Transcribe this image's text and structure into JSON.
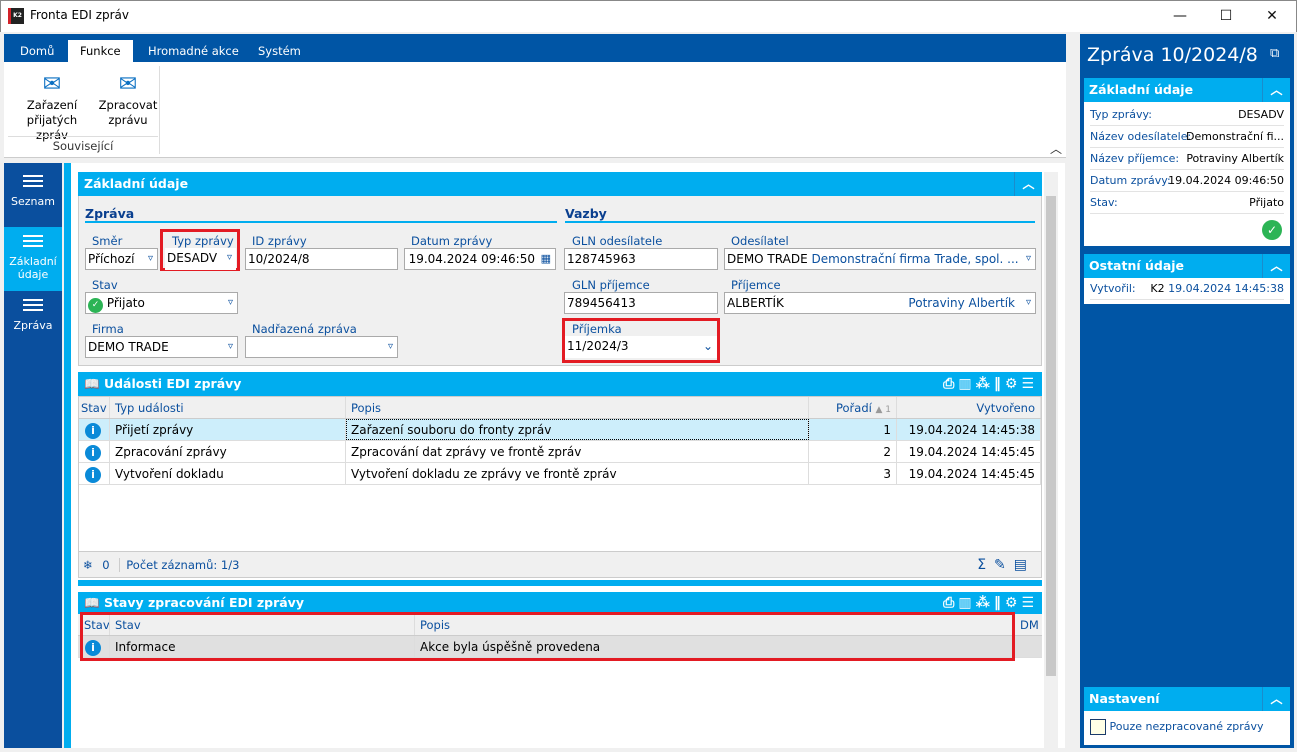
{
  "window": {
    "title": "Fronta EDI zpráv",
    "logo": "K2",
    "minimize": "—",
    "maximize": "☐",
    "close": "✕"
  },
  "ribbon": {
    "tabs": [
      "Domů",
      "Funkce",
      "Hromadné akce",
      "Systém"
    ],
    "active_tab": "Funkce",
    "buttons": [
      {
        "line1": "Zařazení",
        "line2": "přijatých zpráv",
        "icon": "envelopes-icon"
      },
      {
        "line1": "Zpracovat",
        "line2": "zprávu",
        "icon": "envelope-gear-icon"
      }
    ],
    "group": "Související"
  },
  "nav": {
    "items": [
      {
        "label": "Seznam"
      },
      {
        "label1": "Základní",
        "label2": "údaje",
        "active": true
      },
      {
        "label": "Zpráva"
      }
    ]
  },
  "basic": {
    "title": "Základní údaje",
    "zprava": {
      "title": "Zpráva",
      "smer_label": "Směr",
      "smer": "Příchozí",
      "typ_label": "Typ zprávy",
      "typ": "DESADV",
      "id_label": "ID zprávy",
      "id": "10/2024/8",
      "datum_label": "Datum zprávy",
      "datum": "19.04.2024 09:46:50",
      "stav_label": "Stav",
      "stav": "Přijato",
      "firma_label": "Firma",
      "firma": "DEMO TRADE",
      "nadrazena_label": "Nadřazená zpráva",
      "nadrazena": ""
    },
    "vazby": {
      "title": "Vazby",
      "gln_odes_label": "GLN odesílatele",
      "gln_odes": "128745963",
      "odes_label": "Odesílatel",
      "odes_code": "DEMO TRADE",
      "odes_name": "Demonstrační firma Trade, spol. ...",
      "gln_prij_label": "GLN příjemce",
      "gln_prij": "789456413",
      "prij_label": "Příjemce",
      "prij_code": "ALBERTÍK",
      "prij_name": "Potraviny Albertík",
      "prijemka_label": "Příjemka",
      "prijemka": "11/2024/3"
    }
  },
  "events": {
    "title": "Události EDI zprávy",
    "columns": [
      "Stav",
      "Typ události",
      "Popis",
      "Pořadí",
      "Vytvořeno"
    ],
    "sort_marker": "▲ 1",
    "rows": [
      {
        "typ": "Přijetí zprávy",
        "popis": "Zařazení souboru do fronty zpráv",
        "poradi": "1",
        "vytvoreno": "19.04.2024 14:45:38"
      },
      {
        "typ": "Zpracování zprávy",
        "popis": "Zpracování dat zprávy ve frontě zpráv",
        "poradi": "2",
        "vytvoreno": "19.04.2024 14:45:45"
      },
      {
        "typ": "Vytvoření dokladu",
        "popis": "Vytvoření dokladu ze zprávy ve frontě zpráv",
        "poradi": "3",
        "vytvoreno": "19.04.2024 14:45:45"
      }
    ],
    "footer": {
      "filter_count": "0",
      "count": "Počet záznamů: 1/3"
    }
  },
  "states": {
    "title": "Stavy zpracování EDI zprávy",
    "columns": [
      "Stav",
      "Stav",
      "Popis",
      "DM"
    ],
    "rows": [
      {
        "stav": "Informace",
        "popis": "Akce byla úspěšně provedena"
      }
    ]
  },
  "right": {
    "title": "Zpráva 10/2024/8",
    "basic": {
      "title": "Základní údaje",
      "rows": [
        {
          "k": "Typ zprávy:",
          "v": "DESADV"
        },
        {
          "k": "Název odesílatele:",
          "v": "Demonstrační fi..."
        },
        {
          "k": "Název příjemce:",
          "v": "Potraviny Albertík"
        },
        {
          "k": "Datum zprávy:",
          "v": "19.04.2024 09:46:50"
        },
        {
          "k": "Stav:",
          "v": "Přijato"
        }
      ]
    },
    "other": {
      "title": "Ostatní údaje",
      "k": "Vytvořil:",
      "user": "K2",
      "date": "19.04.2024 14:45:38"
    },
    "settings": {
      "title": "Nastavení",
      "checkbox_label": "Pouze nezpracované zprávy",
      "checked": false
    }
  },
  "colors": {
    "brand_blue": "#0055a5",
    "accent_cyan": "#00adef",
    "highlight_red": "#e31b23",
    "ok_green": "#2cb455"
  }
}
